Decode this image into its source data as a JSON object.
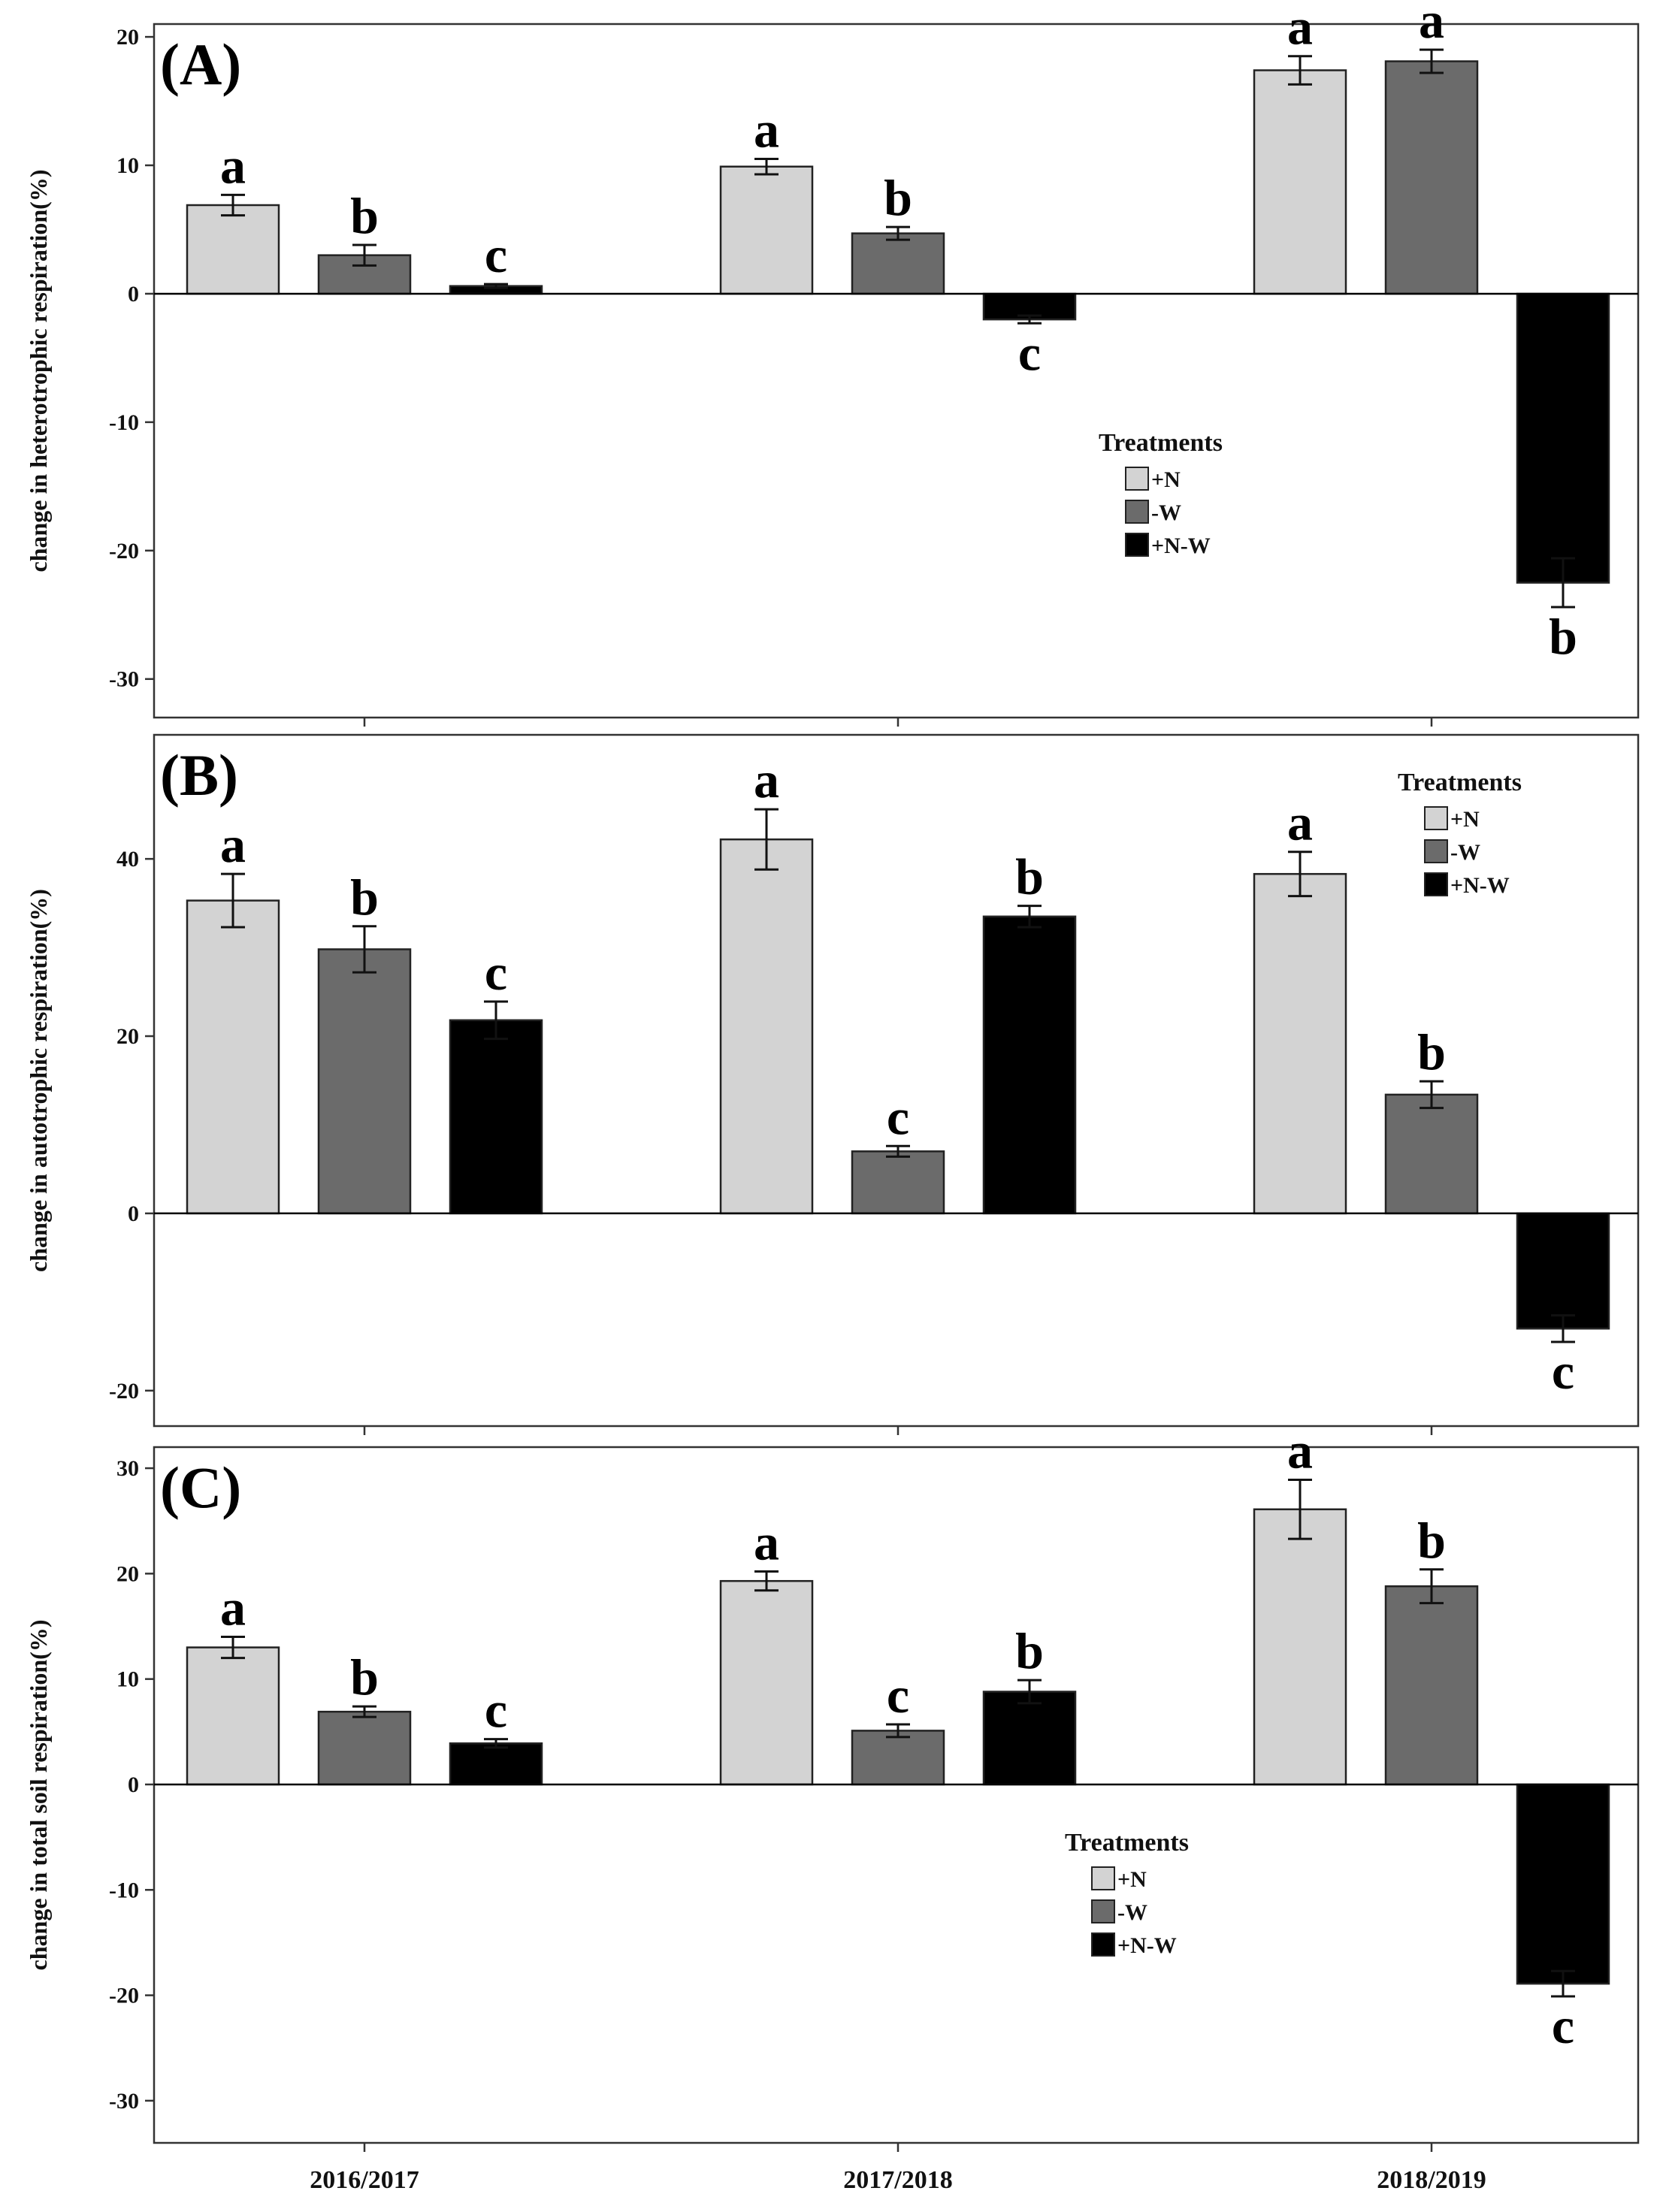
{
  "colors": {
    "+N": "#d3d3d3",
    "-W": "#6b6b6b",
    "+N-W": "#000000"
  },
  "chart_data": [
    {
      "type": "bar",
      "panel_label": "(A)",
      "ylabel": "change in heterotrophic respiration(%)",
      "categories": [
        "2016/2017",
        "2017/2018",
        "2018/2019"
      ],
      "ylim": [
        -33,
        21
      ],
      "yticks": [
        20,
        10,
        0,
        -10,
        -20,
        -30
      ],
      "ytick_labels": [
        "20",
        "10",
        "0",
        "-10",
        "-20",
        "-30"
      ],
      "series": [
        {
          "name": "+N",
          "values": [
            6.9,
            9.9,
            17.4
          ],
          "errors": [
            0.8,
            0.6,
            1.1
          ],
          "letters": [
            "a",
            "a",
            "a"
          ]
        },
        {
          "name": "-W",
          "values": [
            3.0,
            4.7,
            18.1
          ],
          "errors": [
            0.8,
            0.5,
            0.9
          ],
          "letters": [
            "b",
            "b",
            "a"
          ]
        },
        {
          "name": "+N-W",
          "values": [
            0.6,
            -2.0,
            -22.5
          ],
          "errors": [
            0.15,
            0.3,
            1.9
          ],
          "letters": [
            "c",
            "c",
            "b"
          ]
        }
      ],
      "legend": {
        "title": "Treatments",
        "entries": [
          "+N",
          "-W",
          "+N-W"
        ],
        "position": "lower-right"
      }
    },
    {
      "type": "bar",
      "panel_label": "(B)",
      "ylabel": "change in autotrophic respiration(%)",
      "categories": [
        "2016/2017",
        "2017/2018",
        "2018/2019"
      ],
      "ylim": [
        -24,
        54
      ],
      "yticks": [
        40,
        20,
        0,
        -20
      ],
      "ytick_labels": [
        "40",
        "20",
        "0",
        "-20"
      ],
      "series": [
        {
          "name": "+N",
          "values": [
            35.3,
            42.2,
            38.3
          ],
          "errors": [
            3.0,
            3.4,
            2.5
          ],
          "letters": [
            "a",
            "a",
            "a"
          ]
        },
        {
          "name": "-W",
          "values": [
            29.8,
            7.0,
            13.4
          ],
          "errors": [
            2.6,
            0.6,
            1.5
          ],
          "letters": [
            "b",
            "c",
            "b"
          ]
        },
        {
          "name": "+N-W",
          "values": [
            21.8,
            33.5,
            -13.0
          ],
          "errors": [
            2.1,
            1.2,
            1.5
          ],
          "letters": [
            "c",
            "b",
            "c"
          ]
        }
      ],
      "legend": {
        "title": "Treatments",
        "entries": [
          "+N",
          "-W",
          "+N-W"
        ],
        "position": "top-right"
      }
    },
    {
      "type": "bar",
      "panel_label": "(C)",
      "ylabel": "change in total soil respiration(%)",
      "categories": [
        "2016/2017",
        "2017/2018",
        "2018/2019"
      ],
      "ylim": [
        -34,
        32
      ],
      "yticks": [
        30,
        20,
        10,
        0,
        -10,
        -20,
        -30
      ],
      "ytick_labels": [
        "30",
        "20",
        "10",
        "0",
        "-10",
        "-20",
        "-30"
      ],
      "series": [
        {
          "name": "+N",
          "values": [
            13.0,
            19.3,
            26.1
          ],
          "errors": [
            1.0,
            0.9,
            2.8
          ],
          "letters": [
            "a",
            "a",
            "a"
          ]
        },
        {
          "name": "-W",
          "values": [
            6.9,
            5.1,
            18.8
          ],
          "errors": [
            0.5,
            0.6,
            1.6
          ],
          "letters": [
            "b",
            "c",
            "b"
          ]
        },
        {
          "name": "+N-W",
          "values": [
            3.9,
            8.8,
            -18.9
          ],
          "errors": [
            0.4,
            1.1,
            1.2
          ],
          "letters": [
            "c",
            "b",
            "c"
          ]
        }
      ],
      "legend": {
        "title": "Treatments",
        "entries": [
          "+N",
          "-W",
          "+N-W"
        ],
        "position": "lower-center"
      }
    }
  ]
}
